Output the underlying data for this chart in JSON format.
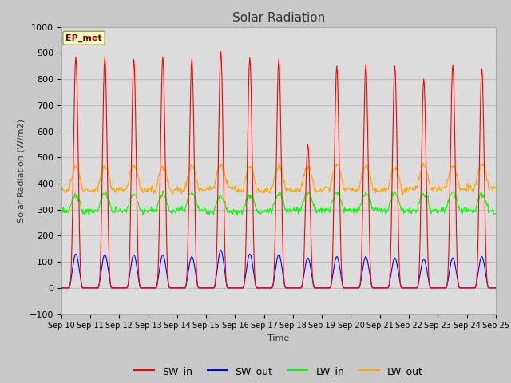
{
  "title": "Solar Radiation",
  "ylabel": "Solar Radiation (W/m2)",
  "xlabel": "Time",
  "ylim": [
    -100,
    1000
  ],
  "yticks": [
    -100,
    0,
    100,
    200,
    300,
    400,
    500,
    600,
    700,
    800,
    900,
    1000
  ],
  "xtick_labels": [
    "Sep 10",
    "Sep 11",
    "Sep 12",
    "Sep 13",
    "Sep 14",
    "Sep 15",
    "Sep 16",
    "Sep 17",
    "Sep 18",
    "Sep 19",
    "Sep 20",
    "Sep 21",
    "Sep 22",
    "Sep 23",
    "Sep 24",
    "Sep 25"
  ],
  "annotation_text": "EP_met",
  "annotation_color": "#800000",
  "annotation_bg": "#FFFFC8",
  "sw_in_color": "#FF0000",
  "sw_out_color": "#0000FF",
  "lw_in_color": "#00FF00",
  "lw_out_color": "#FFA500",
  "fig_bg_color": "#C8C8C8",
  "plot_bg_color": "#DCDCDC",
  "grid_color": "#BEBEBE",
  "n_days": 15,
  "pts_per_day": 48,
  "sw_in_peaks": [
    885,
    882,
    875,
    885,
    877,
    905,
    882,
    877,
    550,
    850,
    855,
    850,
    800,
    855,
    840
  ],
  "sw_out_peaks": [
    130,
    128,
    127,
    127,
    120,
    145,
    130,
    128,
    115,
    120,
    120,
    115,
    110,
    115,
    120
  ],
  "lw_in_base": 295,
  "lw_out_base": 378
}
